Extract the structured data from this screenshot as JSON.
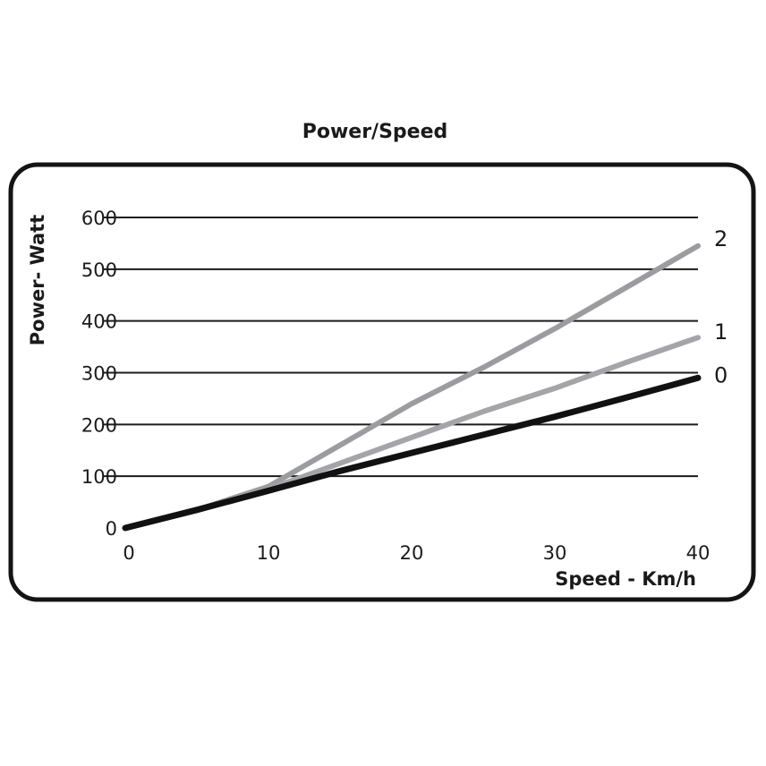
{
  "chart_data": {
    "type": "line",
    "title": "Power/Speed",
    "xlabel": "Speed - Km/h",
    "ylabel": "Power- Watt",
    "xlim": [
      0,
      40
    ],
    "ylim": [
      0,
      600
    ],
    "x_ticks": [
      "0",
      "10",
      "20",
      "30",
      "40"
    ],
    "y_ticks": [
      "0",
      "100",
      "200",
      "300",
      "400",
      "500",
      "600"
    ],
    "grid": "horizontal",
    "series": [
      {
        "name": "2",
        "color": "#9a9c9f",
        "x": [
          0,
          5,
          10,
          15,
          20,
          25,
          30,
          35,
          40
        ],
        "y": [
          0,
          35,
          80,
          160,
          240,
          310,
          385,
          465,
          545
        ]
      },
      {
        "name": "1",
        "color": "#a3a5a8",
        "x": [
          0,
          5,
          10,
          15,
          20,
          25,
          30,
          35,
          40
        ],
        "y": [
          0,
          35,
          75,
          125,
          175,
          225,
          270,
          320,
          368
        ]
      },
      {
        "name": "0",
        "color": "#111111",
        "x": [
          0,
          5,
          10,
          15,
          20,
          25,
          30,
          35,
          40
        ],
        "y": [
          0,
          35,
          72,
          110,
          145,
          180,
          215,
          252,
          290
        ]
      }
    ]
  }
}
